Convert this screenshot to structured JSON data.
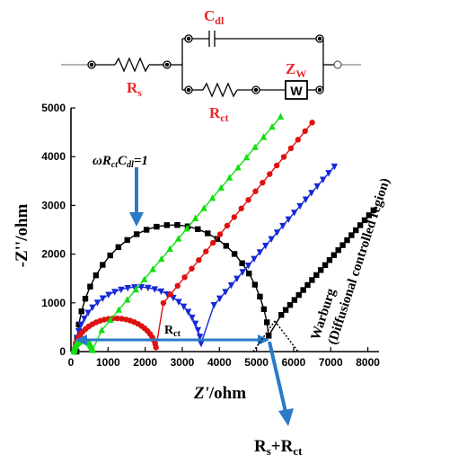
{
  "circuit": {
    "rs": {
      "main": "R",
      "sub": "s"
    },
    "cdl": {
      "main": "C",
      "sub": "dl"
    },
    "rct": {
      "main": "R",
      "sub": "ct"
    },
    "zw": {
      "main": "Z",
      "sub": "W"
    },
    "w_box": "W",
    "label_color": "#e8262a"
  },
  "annotations": {
    "omega": {
      "p1": "ωR",
      "s1": "ct",
      "p2": "C",
      "s2": "dl",
      "p3": "=1"
    },
    "rct_span": {
      "main": "R",
      "sub": "ct"
    },
    "rs_rct": {
      "p1": "R",
      "s1": "s",
      "p2": "+R",
      "s2": "ct"
    },
    "warburg_line1": "Warburg",
    "warburg_line2": "(Diffusional controlled region)",
    "arrow_color": "#2a7ac8"
  },
  "chart_data": {
    "type": "scatter",
    "xlabel_main": "Z'",
    "xlabel_unit": "/ohm",
    "ylabel": "-Z''/ohm",
    "xlim": [
      0,
      8300
    ],
    "ylim": [
      0,
      5000
    ],
    "xticks": [
      "0",
      "1000",
      "2000",
      "3000",
      "4000",
      "5000",
      "6000",
      "7000",
      "8000"
    ],
    "yticks": [
      "0",
      "1000",
      "2000",
      "3000",
      "4000",
      "5000"
    ],
    "xtick_values": [
      0,
      1000,
      2000,
      3000,
      4000,
      5000,
      6000,
      7000,
      8000
    ],
    "ytick_values": [
      0,
      1000,
      2000,
      3000,
      4000,
      5000
    ],
    "series": [
      {
        "color": "#000000",
        "marker": "square",
        "arc": {
          "rs": 150,
          "rct": 5200,
          "depress": 0
        },
        "warburg": {
          "x0": 5550,
          "y0": 650,
          "x1": 8150,
          "y1": 2900
        }
      },
      {
        "color": "#1428d8",
        "marker": "triangle-down",
        "arc": {
          "rs": 120,
          "rct": 3400,
          "depress": 0.22
        },
        "warburg": {
          "x0": 3700,
          "y0": 820,
          "x1": 7100,
          "y1": 3800
        }
      },
      {
        "color": "#e01010",
        "marker": "circle",
        "arc": {
          "rs": 100,
          "rct": 2200,
          "depress": 0.38
        },
        "warburg": {
          "x0": 2300,
          "y0": 820,
          "x1": 6500,
          "y1": 4700
        }
      },
      {
        "color": "#10e010",
        "marker": "triangle-up",
        "arc": {
          "rs": 80,
          "rct": 500,
          "depress": 0.1
        },
        "warburg": {
          "x0": 600,
          "y0": 230,
          "x1": 5650,
          "y1": 4820
        }
      }
    ]
  }
}
